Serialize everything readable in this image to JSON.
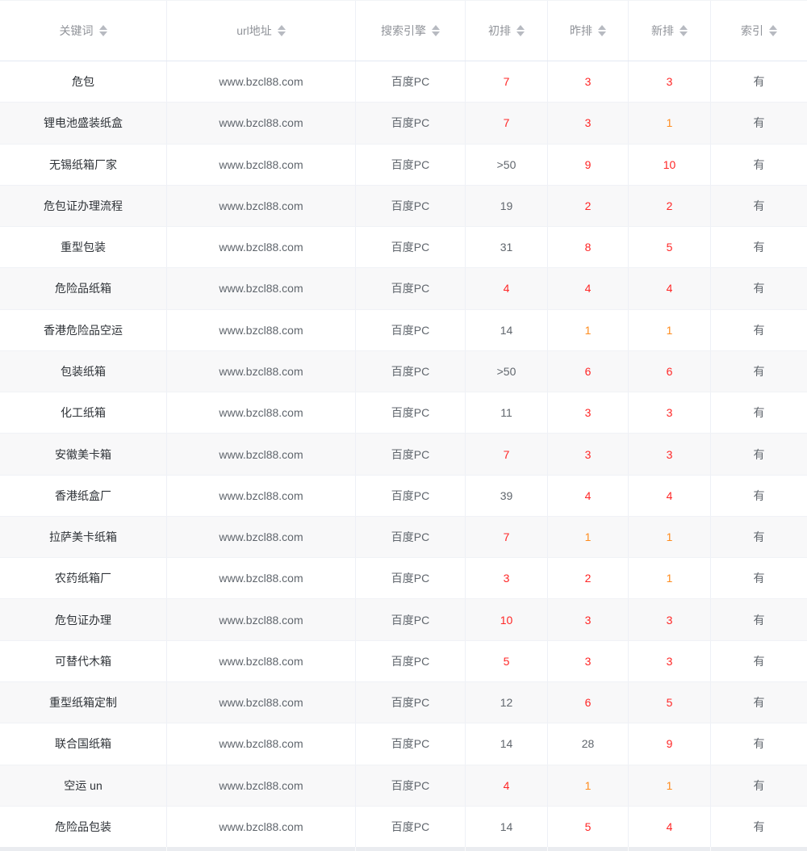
{
  "colors": {
    "rank_red": "#ff2626",
    "rank_one_orange": "#ff8c1e",
    "keyword_text": "#2f3338",
    "cell_text": "#60666d",
    "header_text": "#909399",
    "stripe_bg": "#f8f8f9"
  },
  "table": {
    "columns": [
      {
        "key": "keyword",
        "label": "关键词"
      },
      {
        "key": "url",
        "label": "url地址"
      },
      {
        "key": "engine",
        "label": "搜索引擎"
      },
      {
        "key": "initial",
        "label": "初排"
      },
      {
        "key": "yesterday",
        "label": "昨排"
      },
      {
        "key": "new",
        "label": "新排"
      },
      {
        "key": "index",
        "label": "索引"
      }
    ],
    "sort_icon": "up-down-carets",
    "rows": [
      {
        "keyword": "危包",
        "url": "www.bzcl88.com",
        "engine": "百度PC",
        "initial": {
          "v": "7",
          "c": "red"
        },
        "yesterday": {
          "v": "3",
          "c": "red"
        },
        "new": {
          "v": "3",
          "c": "red"
        },
        "index": "有"
      },
      {
        "keyword": "锂电池盛装纸盒",
        "url": "www.bzcl88.com",
        "engine": "百度PC",
        "initial": {
          "v": "7",
          "c": "red"
        },
        "yesterday": {
          "v": "3",
          "c": "red"
        },
        "new": {
          "v": "1",
          "c": "orange"
        },
        "index": "有"
      },
      {
        "keyword": "无锡纸箱厂家",
        "url": "www.bzcl88.com",
        "engine": "百度PC",
        "initial": {
          "v": ">50",
          "c": "dark"
        },
        "yesterday": {
          "v": "9",
          "c": "red"
        },
        "new": {
          "v": "10",
          "c": "red"
        },
        "index": "有"
      },
      {
        "keyword": "危包证办理流程",
        "url": "www.bzcl88.com",
        "engine": "百度PC",
        "initial": {
          "v": "19",
          "c": "dark"
        },
        "yesterday": {
          "v": "2",
          "c": "red"
        },
        "new": {
          "v": "2",
          "c": "red"
        },
        "index": "有"
      },
      {
        "keyword": "重型包装",
        "url": "www.bzcl88.com",
        "engine": "百度PC",
        "initial": {
          "v": "31",
          "c": "dark"
        },
        "yesterday": {
          "v": "8",
          "c": "red"
        },
        "new": {
          "v": "5",
          "c": "red"
        },
        "index": "有"
      },
      {
        "keyword": "危险品纸箱",
        "url": "www.bzcl88.com",
        "engine": "百度PC",
        "initial": {
          "v": "4",
          "c": "red"
        },
        "yesterday": {
          "v": "4",
          "c": "red"
        },
        "new": {
          "v": "4",
          "c": "red"
        },
        "index": "有"
      },
      {
        "keyword": "香港危险品空运",
        "url": "www.bzcl88.com",
        "engine": "百度PC",
        "initial": {
          "v": "14",
          "c": "dark"
        },
        "yesterday": {
          "v": "1",
          "c": "orange"
        },
        "new": {
          "v": "1",
          "c": "orange"
        },
        "index": "有"
      },
      {
        "keyword": "包装纸箱",
        "url": "www.bzcl88.com",
        "engine": "百度PC",
        "initial": {
          "v": ">50",
          "c": "dark"
        },
        "yesterday": {
          "v": "6",
          "c": "red"
        },
        "new": {
          "v": "6",
          "c": "red"
        },
        "index": "有"
      },
      {
        "keyword": "化工纸箱",
        "url": "www.bzcl88.com",
        "engine": "百度PC",
        "initial": {
          "v": "11",
          "c": "dark"
        },
        "yesterday": {
          "v": "3",
          "c": "red"
        },
        "new": {
          "v": "3",
          "c": "red"
        },
        "index": "有"
      },
      {
        "keyword": "安徽美卡箱",
        "url": "www.bzcl88.com",
        "engine": "百度PC",
        "initial": {
          "v": "7",
          "c": "red"
        },
        "yesterday": {
          "v": "3",
          "c": "red"
        },
        "new": {
          "v": "3",
          "c": "red"
        },
        "index": "有"
      },
      {
        "keyword": "香港纸盒厂",
        "url": "www.bzcl88.com",
        "engine": "百度PC",
        "initial": {
          "v": "39",
          "c": "dark"
        },
        "yesterday": {
          "v": "4",
          "c": "red"
        },
        "new": {
          "v": "4",
          "c": "red"
        },
        "index": "有"
      },
      {
        "keyword": "拉萨美卡纸箱",
        "url": "www.bzcl88.com",
        "engine": "百度PC",
        "initial": {
          "v": "7",
          "c": "red"
        },
        "yesterday": {
          "v": "1",
          "c": "orange"
        },
        "new": {
          "v": "1",
          "c": "orange"
        },
        "index": "有"
      },
      {
        "keyword": "农药纸箱厂",
        "url": "www.bzcl88.com",
        "engine": "百度PC",
        "initial": {
          "v": "3",
          "c": "red"
        },
        "yesterday": {
          "v": "2",
          "c": "red"
        },
        "new": {
          "v": "1",
          "c": "orange"
        },
        "index": "有"
      },
      {
        "keyword": "危包证办理",
        "url": "www.bzcl88.com",
        "engine": "百度PC",
        "initial": {
          "v": "10",
          "c": "red"
        },
        "yesterday": {
          "v": "3",
          "c": "red"
        },
        "new": {
          "v": "3",
          "c": "red"
        },
        "index": "有"
      },
      {
        "keyword": "可替代木箱",
        "url": "www.bzcl88.com",
        "engine": "百度PC",
        "initial": {
          "v": "5",
          "c": "red"
        },
        "yesterday": {
          "v": "3",
          "c": "red"
        },
        "new": {
          "v": "3",
          "c": "red"
        },
        "index": "有"
      },
      {
        "keyword": "重型纸箱定制",
        "url": "www.bzcl88.com",
        "engine": "百度PC",
        "initial": {
          "v": "12",
          "c": "dark"
        },
        "yesterday": {
          "v": "6",
          "c": "red"
        },
        "new": {
          "v": "5",
          "c": "red"
        },
        "index": "有"
      },
      {
        "keyword": "联合国纸箱",
        "url": "www.bzcl88.com",
        "engine": "百度PC",
        "initial": {
          "v": "14",
          "c": "dark"
        },
        "yesterday": {
          "v": "28",
          "c": "dark"
        },
        "new": {
          "v": "9",
          "c": "red"
        },
        "index": "有"
      },
      {
        "keyword": "空运 un",
        "url": "www.bzcl88.com",
        "engine": "百度PC",
        "initial": {
          "v": "4",
          "c": "red"
        },
        "yesterday": {
          "v": "1",
          "c": "orange"
        },
        "new": {
          "v": "1",
          "c": "orange"
        },
        "index": "有"
      },
      {
        "keyword": "危险品包装",
        "url": "www.bzcl88.com",
        "engine": "百度PC",
        "initial": {
          "v": "14",
          "c": "dark"
        },
        "yesterday": {
          "v": "5",
          "c": "red"
        },
        "new": {
          "v": "4",
          "c": "red"
        },
        "index": "有"
      }
    ]
  }
}
